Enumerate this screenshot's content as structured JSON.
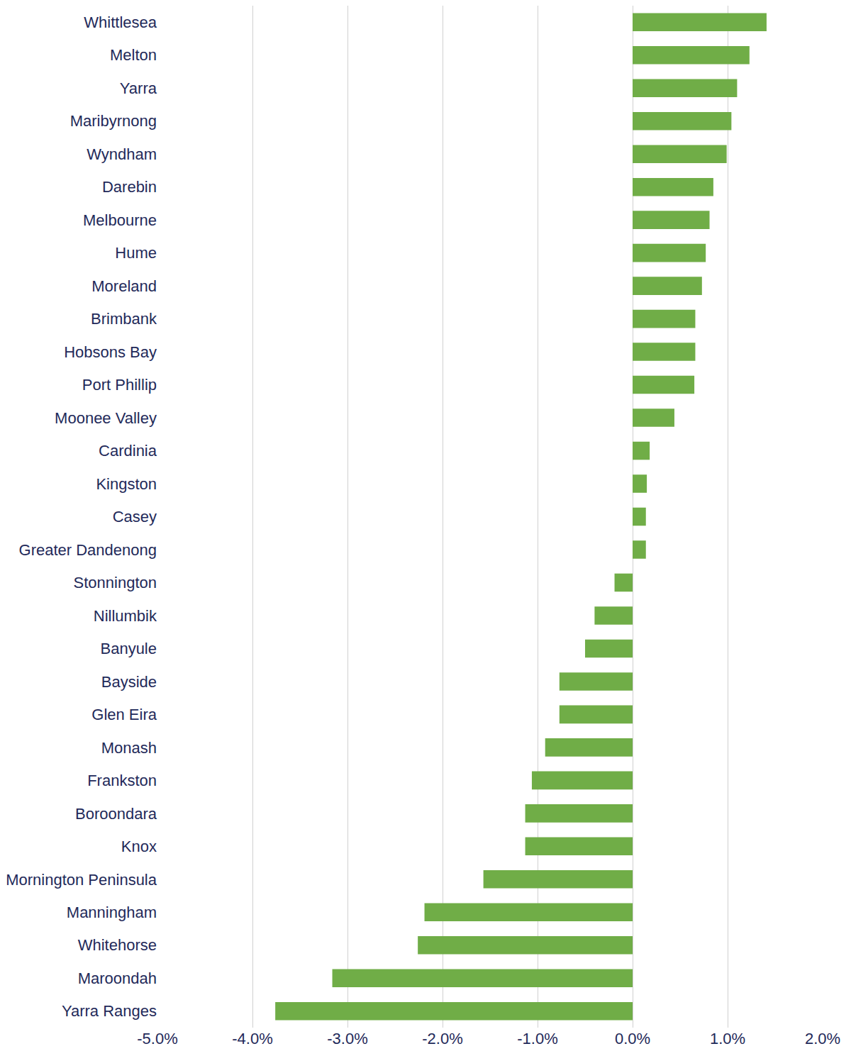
{
  "chart_data": {
    "type": "bar",
    "orientation": "horizontal",
    "color": "#70ad47",
    "grid": true,
    "categories": [
      "Whittlesea",
      "Melton",
      "Yarra",
      "Maribyrnong",
      "Wyndham",
      "Darebin",
      "Melbourne",
      "Hume",
      "Moreland",
      "Brimbank",
      "Hobsons Bay",
      "Port Phillip",
      "Moonee Valley",
      "Cardinia",
      "Kingston",
      "Casey",
      "Greater Dandenong",
      "Stonnington",
      "Nillumbik",
      "Banyule",
      "Bayside",
      "Glen Eira",
      "Monash",
      "Frankston",
      "Boroondara",
      "Knox",
      "Mornington Peninsula",
      "Manningham",
      "Whitehorse",
      "Maroondah",
      "Yarra Ranges"
    ],
    "values": [
      1.41,
      1.23,
      1.1,
      1.04,
      0.99,
      0.85,
      0.81,
      0.77,
      0.73,
      0.66,
      0.66,
      0.65,
      0.44,
      0.18,
      0.15,
      0.14,
      0.14,
      -0.19,
      -0.4,
      -0.5,
      -0.77,
      -0.77,
      -0.92,
      -1.06,
      -1.13,
      -1.13,
      -1.57,
      -2.19,
      -2.26,
      -3.16,
      -3.76
    ],
    "xlim": [
      -5,
      2
    ],
    "xticks": [
      {
        "value": -5,
        "label": "-5.0%"
      },
      {
        "value": -4,
        "label": "-4.0%"
      },
      {
        "value": -3,
        "label": "-3.0%"
      },
      {
        "value": -2,
        "label": "-2.0%"
      },
      {
        "value": -1,
        "label": "-1.0%"
      },
      {
        "value": 0,
        "label": "0.0%"
      },
      {
        "value": 1,
        "label": "1.0%"
      },
      {
        "value": 2,
        "label": "2.0%"
      }
    ]
  }
}
